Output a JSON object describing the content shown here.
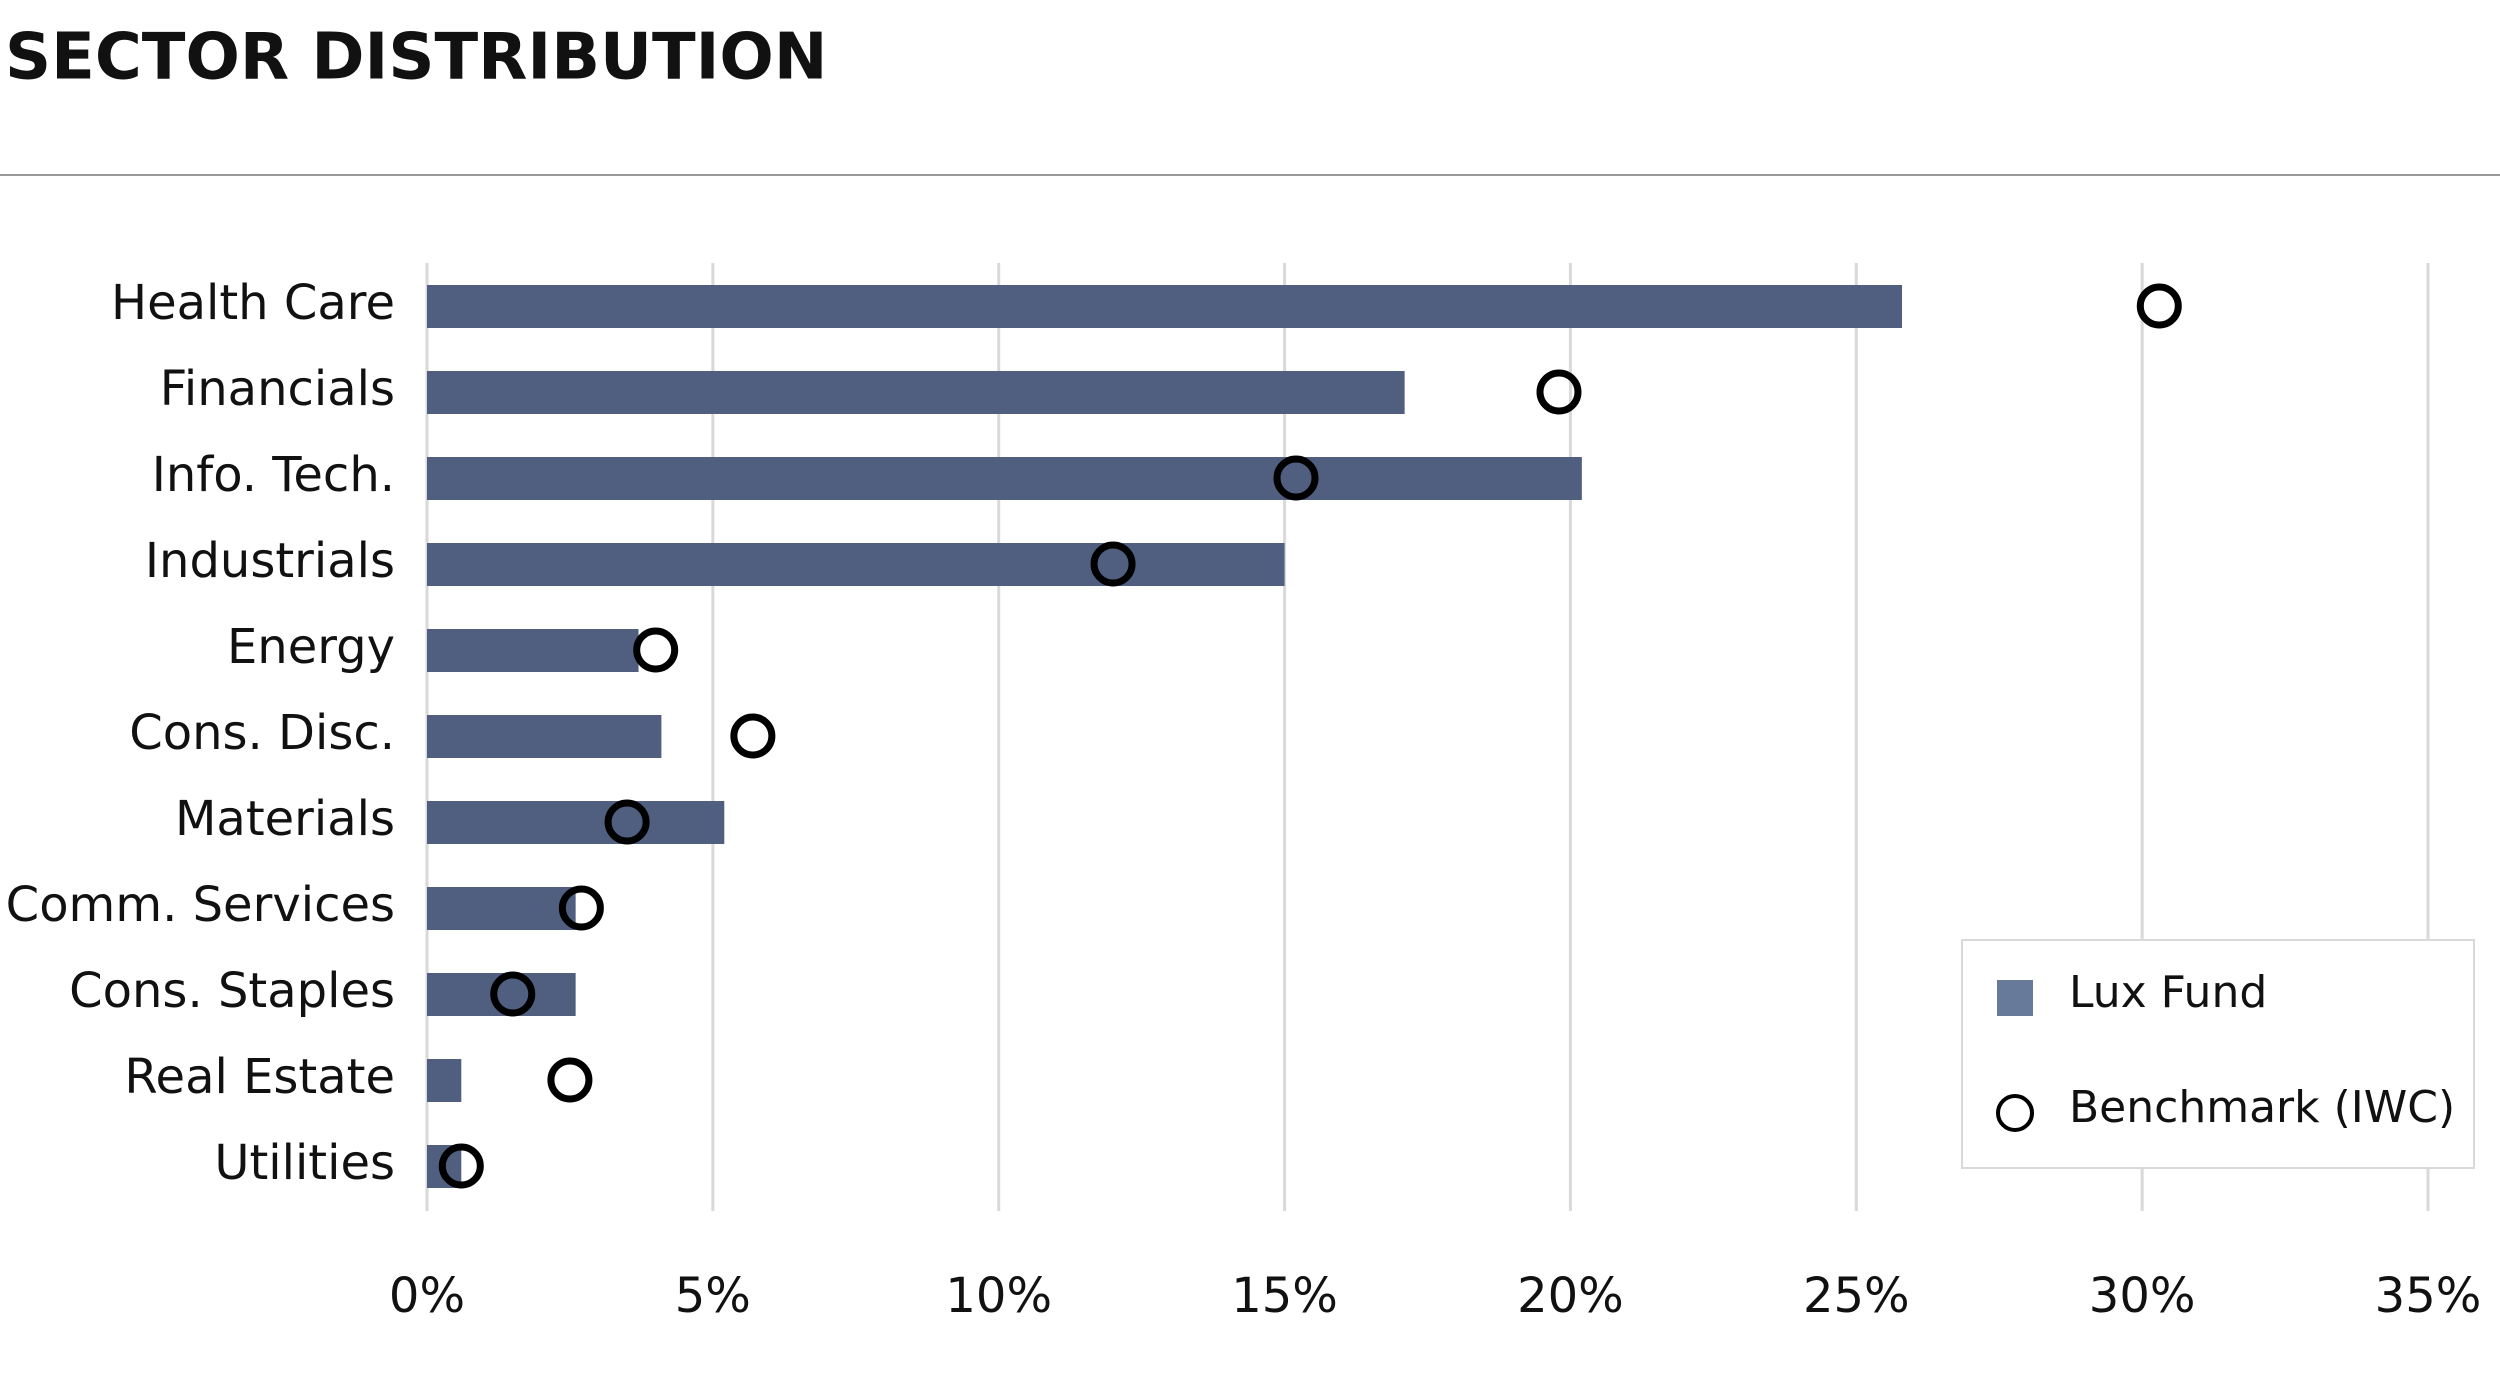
{
  "chart_data": {
    "type": "bar",
    "orientation": "horizontal",
    "title": "SECTOR DISTRIBUTION",
    "categories": [
      "Health Care",
      "Financials",
      "Info. Tech.",
      "Industrials",
      "Energy",
      "Cons. Disc.",
      "Materials",
      "Comm. Services",
      "Cons. Staples",
      "Real Estate",
      "Utilities"
    ],
    "series": [
      {
        "name": "Lux Fund",
        "type": "bar",
        "color": "#505f80",
        "values": [
          25.8,
          17.1,
          20.2,
          15.0,
          3.7,
          4.1,
          5.2,
          2.6,
          2.6,
          0.6,
          0.6
        ]
      },
      {
        "name": "Benchmark (IWC)",
        "type": "marker",
        "color": "#000000",
        "values": [
          30.3,
          19.8,
          15.2,
          12.0,
          4.0,
          5.7,
          3.5,
          2.7,
          1.5,
          2.5,
          0.6
        ]
      }
    ],
    "xlim": [
      0,
      35
    ],
    "xticks": [
      {
        "value": 0,
        "label": "0%"
      },
      {
        "value": 5,
        "label": "5%"
      },
      {
        "value": 10,
        "label": "10%"
      },
      {
        "value": 15,
        "label": "15%"
      },
      {
        "value": 20,
        "label": "20%"
      },
      {
        "value": 25,
        "label": "25%"
      },
      {
        "value": 30,
        "label": "30%"
      },
      {
        "value": 35,
        "label": "35%"
      }
    ],
    "grid": true,
    "legend": "lower right"
  }
}
